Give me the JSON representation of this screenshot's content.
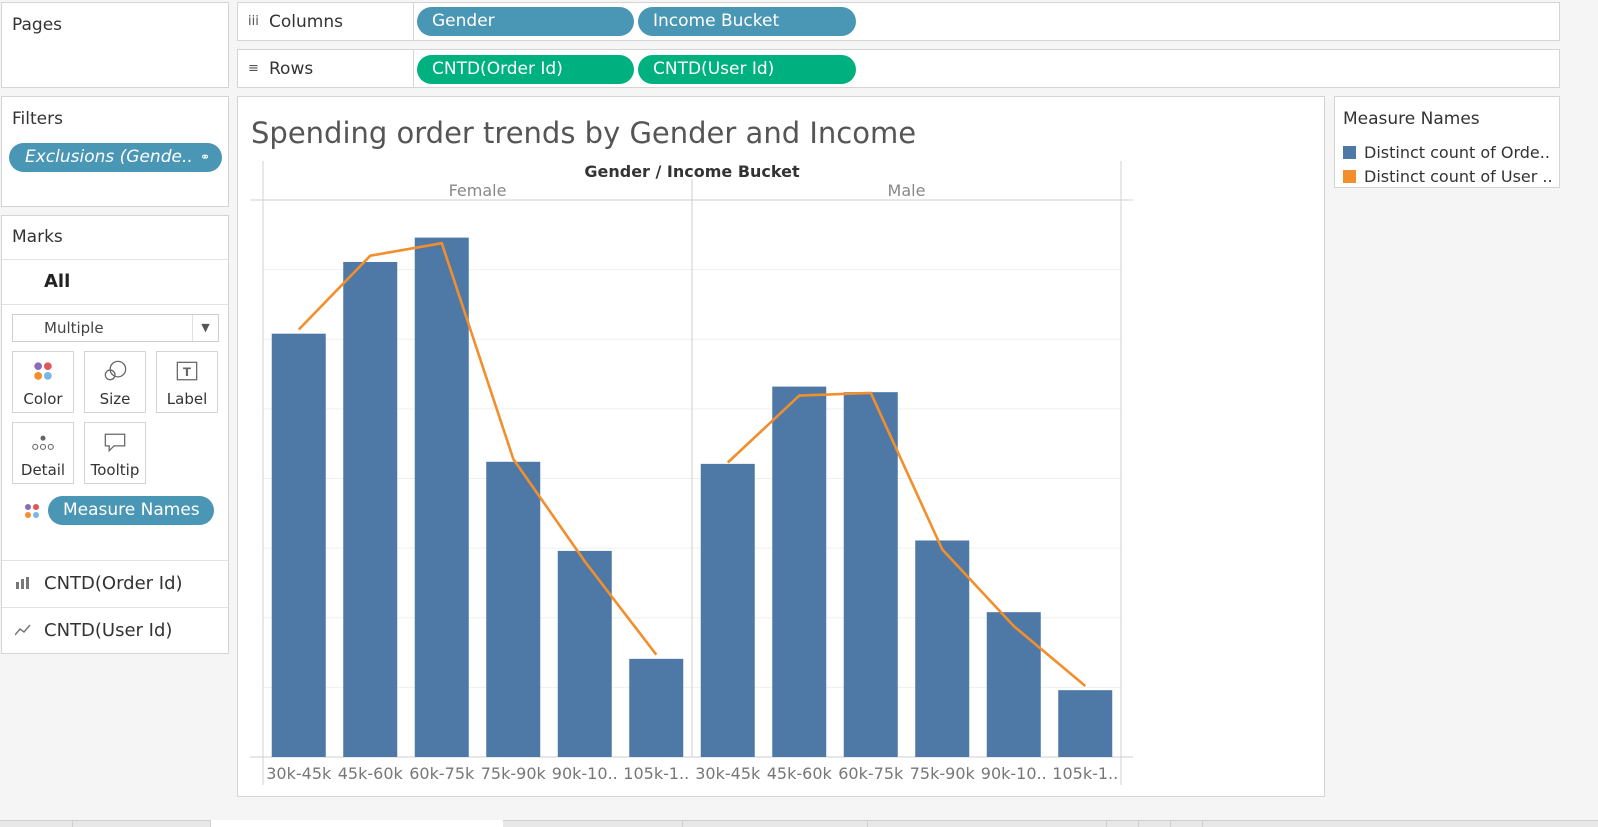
{
  "pages": {
    "title": "Pages"
  },
  "columns_shelf": {
    "label": "Columns",
    "icon": "columns-icon",
    "pills": [
      "Gender",
      "Income Bucket"
    ]
  },
  "rows_shelf": {
    "label": "Rows",
    "icon": "rows-icon",
    "pills": [
      "CNTD(Order Id)",
      "CNTD(User Id)"
    ]
  },
  "filters": {
    "title": "Filters",
    "pill": "Exclusions (Gende.."
  },
  "marks": {
    "title": "Marks",
    "all_label": "All",
    "type_select": "Multiple",
    "buttons": {
      "color": "Color",
      "size": "Size",
      "label": "Label",
      "detail": "Detail",
      "tooltip": "Tooltip"
    },
    "color_pill": "Measure Names",
    "cards": [
      "CNTD(Order Id)",
      "CNTD(User Id)"
    ]
  },
  "legend": {
    "title": "Measure Names",
    "items": [
      "Distinct count of Orde..",
      "Distinct count of User .."
    ]
  },
  "colors": {
    "bar": "#4e79a7",
    "line": "#f28e2b",
    "dimension_pill": "#4a96b5",
    "measure_pill": "#00b180"
  },
  "chart_data": {
    "type": "bar",
    "title": "Spending order trends by Gender and Income",
    "header": "Gender / Income Bucket",
    "panes": [
      "Female",
      "Male"
    ],
    "categories": [
      "30k-45k",
      "45k-60k",
      "60k-75k",
      "75k-90k",
      "90k-10..",
      "105k-1.."
    ],
    "series": [
      {
        "name": "Distinct count of Orde..",
        "mark": "bar",
        "values": {
          "Female": [
            608,
            711,
            746,
            424,
            296,
            141
          ],
          "Male": [
            421,
            532,
            524,
            311,
            208,
            96
          ]
        }
      },
      {
        "name": "Distinct count of User ..",
        "mark": "line",
        "values": {
          "Female": [
            614,
            720,
            738,
            428,
            281,
            147
          ],
          "Male": [
            423,
            519,
            523,
            298,
            188,
            102
          ]
        }
      }
    ],
    "ylim": [
      0,
      800
    ],
    "y_axis_visible": false,
    "grid": true
  }
}
